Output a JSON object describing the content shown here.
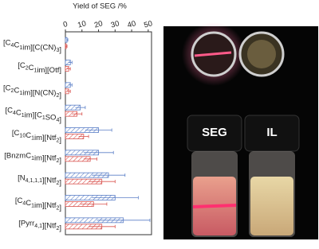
{
  "chart_data": {
    "type": "bar",
    "orientation": "horizontal",
    "x_label": "Yield of SEG /%",
    "categories": [
      "[C4C1im][C(CN)3]",
      "[C2C1im][Otf]",
      "[C2C1im][N(CN)2]",
      "[C4C1im][C1SO4]",
      "[C10C1im][Ntf2]",
      "[BnzmC1im][Ntf2]",
      "[N4,1,1,1][Ntf2]",
      "[C4C1im][Ntf2]",
      "[Pyrr4,1][Ntf2]"
    ],
    "series": [
      {
        "color": "#5b7fc7",
        "values": [
          1,
          3,
          3,
          9,
          20,
          20,
          26,
          30,
          35
        ],
        "errors": [
          0.5,
          1,
          1,
          3,
          8,
          9,
          10,
          14,
          16
        ]
      },
      {
        "color": "#d9534f",
        "values": [
          0.5,
          2,
          2,
          7,
          11,
          15,
          22,
          17,
          22
        ],
        "errors": [
          0.5,
          1,
          1,
          3,
          3,
          4,
          8,
          8,
          8
        ]
      }
    ],
    "xlim": [
      0,
      52
    ],
    "xticks": [
      0,
      10,
      20,
      30,
      40,
      50
    ],
    "hatch": true
  },
  "photo": {
    "labels": [
      "SEG",
      "IL"
    ]
  }
}
